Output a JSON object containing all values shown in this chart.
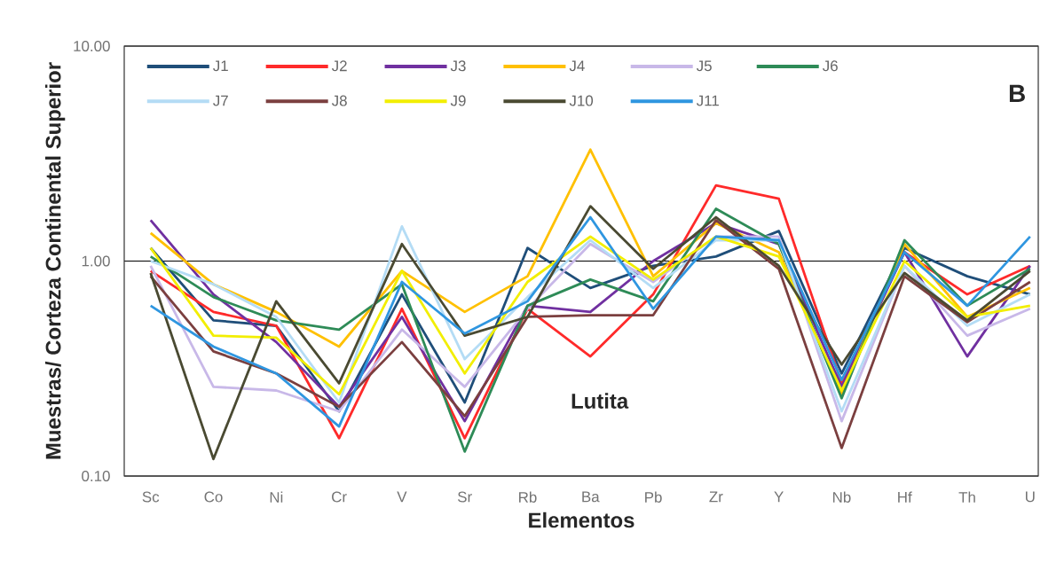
{
  "chart_data": {
    "type": "line",
    "xlabel": "Elementos",
    "ylabel": "Muestras/ Corteza Continental Superior",
    "categories": [
      "Sc",
      "Co",
      "Ni",
      "Cr",
      "V",
      "Sr",
      "Rb",
      "Ba",
      "Pb",
      "Zr",
      "Y",
      "Nb",
      "Hf",
      "Th",
      "U"
    ],
    "log": "y",
    "ylim": [
      0.1,
      10
    ],
    "yticks": [
      {
        "value": 0.1,
        "label": "0.10"
      },
      {
        "value": 1,
        "label": "1.00"
      },
      {
        "value": 10,
        "label": "10.00"
      }
    ],
    "grid": "y",
    "legend": "top",
    "annotations": [
      "B",
      "Lutita"
    ],
    "series": [
      {
        "name": "J1",
        "color": "#1f4e79",
        "values": [
          1.15,
          0.53,
          0.5,
          0.2,
          0.7,
          0.22,
          1.15,
          0.75,
          0.95,
          1.05,
          1.38,
          0.3,
          1.15,
          0.85,
          0.7
        ]
      },
      {
        "name": "J2",
        "color": "#ff2a2a",
        "values": [
          0.9,
          0.58,
          0.5,
          0.15,
          0.6,
          0.15,
          0.6,
          0.36,
          0.7,
          2.25,
          1.95,
          0.27,
          1.1,
          0.7,
          0.95
        ]
      },
      {
        "name": "J3",
        "color": "#7030a0",
        "values": [
          1.55,
          0.7,
          0.42,
          0.21,
          0.55,
          0.18,
          0.62,
          0.58,
          1.0,
          1.5,
          1.2,
          0.26,
          1.1,
          0.36,
          0.95
        ]
      },
      {
        "name": "J4",
        "color": "#ffc000",
        "values": [
          1.35,
          0.78,
          0.58,
          0.4,
          0.9,
          0.58,
          0.85,
          3.3,
          0.85,
          1.5,
          1.1,
          0.24,
          1.2,
          0.55,
          0.75
        ]
      },
      {
        "name": "J5",
        "color": "#c8b8e8",
        "values": [
          0.95,
          0.26,
          0.25,
          0.2,
          0.48,
          0.26,
          0.6,
          1.2,
          0.8,
          1.3,
          1.3,
          0.18,
          0.95,
          0.45,
          0.6
        ]
      },
      {
        "name": "J6",
        "color": "#2e8b57",
        "values": [
          1.05,
          0.68,
          0.53,
          0.48,
          0.78,
          0.13,
          0.62,
          0.82,
          0.65,
          1.75,
          1.2,
          0.23,
          1.25,
          0.62,
          0.92
        ]
      },
      {
        "name": "J7",
        "color": "#b4dcf5",
        "values": [
          1.0,
          0.78,
          0.55,
          0.22,
          1.45,
          0.35,
          0.68,
          1.25,
          0.75,
          1.25,
          1.25,
          0.2,
          0.95,
          0.5,
          0.7
        ]
      },
      {
        "name": "J8",
        "color": "#7b3f3f",
        "values": [
          0.85,
          0.38,
          0.3,
          0.21,
          0.42,
          0.19,
          0.55,
          0.56,
          0.56,
          1.55,
          0.92,
          0.135,
          0.85,
          0.52,
          0.8
        ]
      },
      {
        "name": "J9",
        "color": "#f2ee00",
        "values": [
          1.15,
          0.45,
          0.44,
          0.24,
          0.9,
          0.3,
          0.8,
          1.3,
          0.82,
          1.3,
          1.05,
          0.25,
          1.0,
          0.55,
          0.62
        ]
      },
      {
        "name": "J10",
        "color": "#4a4a32",
        "values": [
          0.88,
          0.12,
          0.65,
          0.27,
          1.2,
          0.45,
          0.55,
          1.8,
          0.92,
          1.6,
          0.95,
          0.33,
          0.88,
          0.53,
          0.9
        ]
      },
      {
        "name": "J11",
        "color": "#2f96e0",
        "values": [
          0.62,
          0.4,
          0.3,
          0.17,
          0.8,
          0.46,
          0.65,
          1.6,
          0.6,
          1.3,
          1.25,
          0.28,
          1.1,
          0.62,
          1.3
        ]
      }
    ]
  }
}
